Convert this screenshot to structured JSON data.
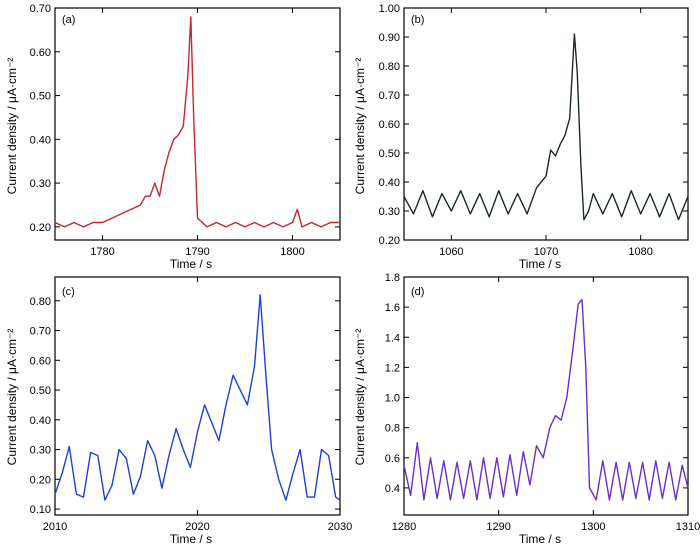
{
  "figure": {
    "panels": [
      {
        "letter": "(a)",
        "xlabel": "Time / s",
        "ylabel": "Current density / μA·cm⁻²",
        "xlim": [
          1775,
          1805
        ],
        "ylim": [
          0.17,
          0.7
        ],
        "xticks": [
          1780,
          1790,
          1800
        ],
        "yticks": [
          0.2,
          0.3,
          0.4,
          0.5,
          0.6,
          0.7
        ],
        "ytick_labels": [
          "0.20",
          "0.30",
          "0.40",
          "0.50",
          "0.60",
          "0.70"
        ],
        "color": "#c1272d"
      },
      {
        "letter": "(b)",
        "xlabel": "Time / s",
        "ylabel": "Current density / μA·cm⁻²",
        "xlim": [
          1055,
          1085
        ],
        "ylim": [
          0.2,
          1.0
        ],
        "xticks": [
          1060,
          1070,
          1080
        ],
        "yticks": [
          0.2,
          0.3,
          0.4,
          0.5,
          0.6,
          0.7,
          0.8,
          0.9,
          1.0
        ],
        "ytick_labels": [
          "0.20",
          "0.30",
          "0.40",
          "0.50",
          "0.60",
          "0.70",
          "0.80",
          "0.90",
          "1.00"
        ],
        "color": "#1a2a2a"
      },
      {
        "letter": "(c)",
        "xlabel": "Time / s",
        "ylabel": "Current density / μA·cm⁻²",
        "xlim": [
          2010,
          2030
        ],
        "ylim": [
          0.08,
          0.88
        ],
        "xticks": [
          2010,
          2020,
          2030
        ],
        "yticks": [
          0.1,
          0.2,
          0.3,
          0.4,
          0.5,
          0.6,
          0.7,
          0.8
        ],
        "ytick_labels": [
          "0.10",
          "0.20",
          "0.30",
          "0.40",
          "0.50",
          "0.60",
          "0.70",
          "0.80"
        ],
        "color": "#1f3fd6"
      },
      {
        "letter": "(d)",
        "xlabel": "Time / s",
        "ylabel": "Current density / μA·cm⁻²",
        "xlim": [
          1280,
          1310
        ],
        "ylim": [
          0.22,
          1.8
        ],
        "xticks": [
          1280,
          1290,
          1300,
          1310
        ],
        "yticks": [
          0.4,
          0.6,
          0.8,
          1.0,
          1.2,
          1.4,
          1.6,
          1.8
        ],
        "ytick_labels": [
          "0.4",
          "0.6",
          "0.8",
          "1.0",
          "1.2",
          "1.4",
          "1.6",
          "1.8"
        ],
        "color": "#6a2fc9"
      }
    ]
  },
  "chart_data": [
    {
      "type": "line",
      "panel": "(a)",
      "xlabel": "Time / s",
      "ylabel": "Current density / μA·cm⁻²",
      "xlim": [
        1775,
        1805
      ],
      "ylim": [
        0.17,
        0.7
      ],
      "grid": false,
      "series": [
        {
          "x": [
            1775,
            1776,
            1777,
            1778,
            1779,
            1780,
            1781,
            1782,
            1783,
            1784,
            1784.5,
            1785,
            1785.5,
            1786,
            1786.5,
            1787,
            1787.5,
            1788,
            1788.5,
            1789,
            1789.3,
            1789.6,
            1790,
            1790.5,
            1791,
            1792,
            1793,
            1794,
            1795,
            1796,
            1797,
            1798,
            1799,
            1800,
            1800.5,
            1801,
            1802,
            1803,
            1804,
            1805
          ],
          "y": [
            0.21,
            0.2,
            0.21,
            0.2,
            0.21,
            0.21,
            0.22,
            0.23,
            0.24,
            0.25,
            0.27,
            0.27,
            0.3,
            0.27,
            0.33,
            0.37,
            0.4,
            0.41,
            0.43,
            0.55,
            0.68,
            0.45,
            0.22,
            0.21,
            0.2,
            0.21,
            0.2,
            0.21,
            0.2,
            0.21,
            0.2,
            0.21,
            0.2,
            0.21,
            0.24,
            0.2,
            0.21,
            0.2,
            0.21,
            0.21
          ]
        }
      ]
    },
    {
      "type": "line",
      "panel": "(b)",
      "xlabel": "Time / s",
      "ylabel": "Current density / μA·cm⁻²",
      "xlim": [
        1055,
        1085
      ],
      "ylim": [
        0.2,
        1.0
      ],
      "grid": false,
      "series": [
        {
          "x": [
            1055,
            1056,
            1057,
            1058,
            1059,
            1060,
            1061,
            1062,
            1063,
            1064,
            1065,
            1066,
            1067,
            1068,
            1069,
            1070,
            1070.5,
            1071,
            1071.5,
            1072,
            1072.5,
            1073,
            1073.3,
            1073.7,
            1074,
            1074.5,
            1075,
            1076,
            1077,
            1078,
            1079,
            1080,
            1081,
            1082,
            1083,
            1084,
            1085
          ],
          "y": [
            0.35,
            0.29,
            0.37,
            0.28,
            0.36,
            0.3,
            0.37,
            0.29,
            0.36,
            0.28,
            0.37,
            0.29,
            0.36,
            0.29,
            0.38,
            0.42,
            0.51,
            0.49,
            0.53,
            0.56,
            0.62,
            0.91,
            0.78,
            0.45,
            0.27,
            0.3,
            0.36,
            0.29,
            0.36,
            0.28,
            0.37,
            0.29,
            0.36,
            0.28,
            0.36,
            0.27,
            0.35
          ]
        }
      ]
    },
    {
      "type": "line",
      "panel": "(c)",
      "xlabel": "Time / s",
      "ylabel": "Current density / μA·cm⁻²",
      "xlim": [
        2010,
        2030
      ],
      "ylim": [
        0.08,
        0.88
      ],
      "grid": false,
      "series": [
        {
          "x": [
            2010,
            2010.5,
            2011,
            2011.5,
            2012,
            2012.5,
            2013,
            2013.5,
            2014,
            2014.5,
            2015,
            2015.5,
            2016,
            2016.5,
            2017,
            2017.5,
            2018,
            2018.5,
            2019,
            2019.5,
            2020,
            2020.5,
            2021,
            2021.5,
            2022,
            2022.5,
            2023,
            2023.5,
            2024,
            2024.4,
            2024.8,
            2025.2,
            2025.7,
            2026.2,
            2026.7,
            2027.2,
            2027.7,
            2028.2,
            2028.7,
            2029.2,
            2029.7,
            2030
          ],
          "y": [
            0.15,
            0.22,
            0.31,
            0.15,
            0.14,
            0.29,
            0.28,
            0.13,
            0.18,
            0.3,
            0.27,
            0.15,
            0.21,
            0.33,
            0.28,
            0.17,
            0.28,
            0.37,
            0.3,
            0.24,
            0.36,
            0.45,
            0.39,
            0.33,
            0.45,
            0.55,
            0.5,
            0.45,
            0.58,
            0.82,
            0.55,
            0.3,
            0.2,
            0.13,
            0.22,
            0.3,
            0.14,
            0.14,
            0.3,
            0.28,
            0.14,
            0.13
          ]
        }
      ]
    },
    {
      "type": "line",
      "panel": "(d)",
      "xlabel": "Time / s",
      "ylabel": "Current density / μA·cm⁻²",
      "xlim": [
        1280,
        1310
      ],
      "ylim": [
        0.22,
        1.8
      ],
      "grid": false,
      "series": [
        {
          "x": [
            1280,
            1280.7,
            1281.4,
            1282.1,
            1282.8,
            1283.5,
            1284.2,
            1284.9,
            1285.6,
            1286.3,
            1287,
            1287.7,
            1288.4,
            1289.1,
            1289.8,
            1290.5,
            1291.2,
            1291.9,
            1292.6,
            1293.3,
            1294,
            1294.7,
            1295.4,
            1296,
            1296.6,
            1297.2,
            1297.8,
            1298.4,
            1298.8,
            1299.2,
            1299.6,
            1300.3,
            1301,
            1301.7,
            1302.4,
            1303.1,
            1303.8,
            1304.5,
            1305.2,
            1305.9,
            1306.6,
            1307.3,
            1308,
            1308.7,
            1309.4,
            1310
          ],
          "y": [
            0.55,
            0.35,
            0.7,
            0.32,
            0.6,
            0.33,
            0.58,
            0.32,
            0.57,
            0.33,
            0.58,
            0.32,
            0.6,
            0.33,
            0.6,
            0.34,
            0.62,
            0.35,
            0.64,
            0.42,
            0.68,
            0.6,
            0.8,
            0.88,
            0.85,
            1.0,
            1.3,
            1.62,
            1.65,
            1.2,
            0.4,
            0.32,
            0.58,
            0.32,
            0.57,
            0.32,
            0.57,
            0.33,
            0.57,
            0.32,
            0.58,
            0.33,
            0.57,
            0.32,
            0.55,
            0.4
          ]
        }
      ]
    }
  ]
}
